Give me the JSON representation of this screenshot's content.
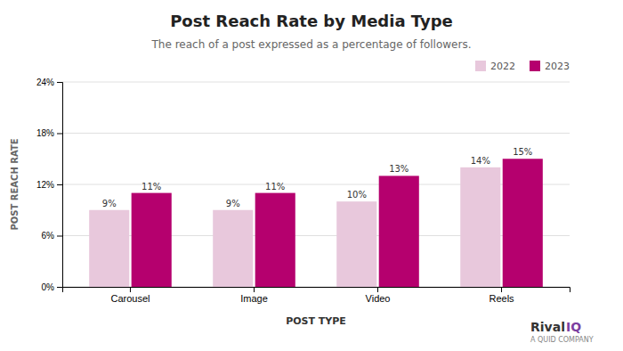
{
  "chart_data": {
    "type": "bar",
    "title": "Post Reach Rate by Media Type",
    "subtitle": "The reach of a post expressed as a percentage of followers.",
    "xlabel": "POST TYPE",
    "ylabel": "POST REACH RATE",
    "categories": [
      "Carousel",
      "Image",
      "Video",
      "Reels"
    ],
    "series": [
      {
        "name": "2022",
        "color": "#e8c8dc",
        "values": [
          9,
          9,
          10,
          14
        ],
        "value_labels": [
          "9%",
          "9%",
          "10%",
          "14%"
        ]
      },
      {
        "name": "2023",
        "color": "#b5006e",
        "values": [
          11,
          11,
          13,
          15
        ],
        "value_labels": [
          "11%",
          "11%",
          "13%",
          "15%"
        ]
      }
    ],
    "ylim": [
      0,
      24
    ],
    "yticks": [
      {
        "value": 0,
        "label": "0%"
      },
      {
        "value": 6,
        "label": "6%"
      },
      {
        "value": 12,
        "label": "12%"
      },
      {
        "value": 18,
        "label": "18%"
      },
      {
        "value": 24,
        "label": "24%"
      }
    ],
    "grid": true,
    "legend": "upper right",
    "data_labels": true,
    "annotations": [
      "Rival",
      "IQ",
      "A QUID COMPANY"
    ]
  }
}
